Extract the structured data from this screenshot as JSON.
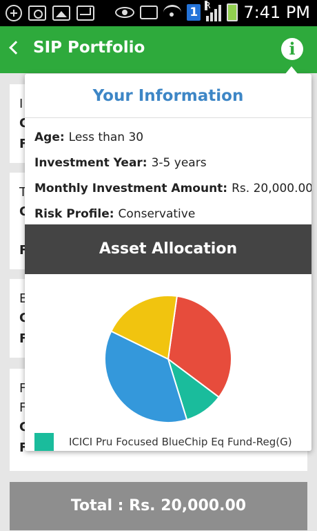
{
  "status_bar": {
    "time": "7:41 PM",
    "sim_badge": "1",
    "roaming": "R"
  },
  "app_bar": {
    "title": "SIP Portfolio",
    "info_glyph": "i"
  },
  "background_cards": [
    {
      "line1": "I",
      "line2": "C",
      "line3": "F"
    },
    {
      "line1": "T",
      "line2": "C",
      "line3": "F"
    },
    {
      "line1": "E",
      "line2": "C",
      "line3": "F"
    },
    {
      "line1": "F",
      "line1b": "F",
      "line2": "C",
      "line3": "F"
    }
  ],
  "total": {
    "label": "Total : Rs. 20,000.00"
  },
  "popup": {
    "title": "Your Information",
    "fields": [
      {
        "key": "Age:",
        "value": "Less than 30"
      },
      {
        "key": "Investment Year:",
        "value": "3-5 years"
      },
      {
        "key": "Monthly Investment Amount:",
        "value": "Rs. 20,000.00"
      },
      {
        "key": "Risk Profile:",
        "value": "Conservative"
      }
    ],
    "asset_header": "Asset Allocation"
  },
  "chart_data": {
    "type": "pie",
    "slices": [
      {
        "name": "",
        "value": 33,
        "color": "#e74c3c"
      },
      {
        "name": "ICICI Pru Focused BlueChip Eq Fund-Reg(G)",
        "value": 10,
        "color": "#1abc9c"
      },
      {
        "name": "",
        "value": 37,
        "color": "#3498db"
      },
      {
        "name": "",
        "value": 20,
        "color": "#f1c40f"
      }
    ],
    "legend_visible": [
      "ICICI Pru Focused BlueChip Eq Fund-Reg(G)"
    ],
    "legend_placement": "bottom"
  }
}
